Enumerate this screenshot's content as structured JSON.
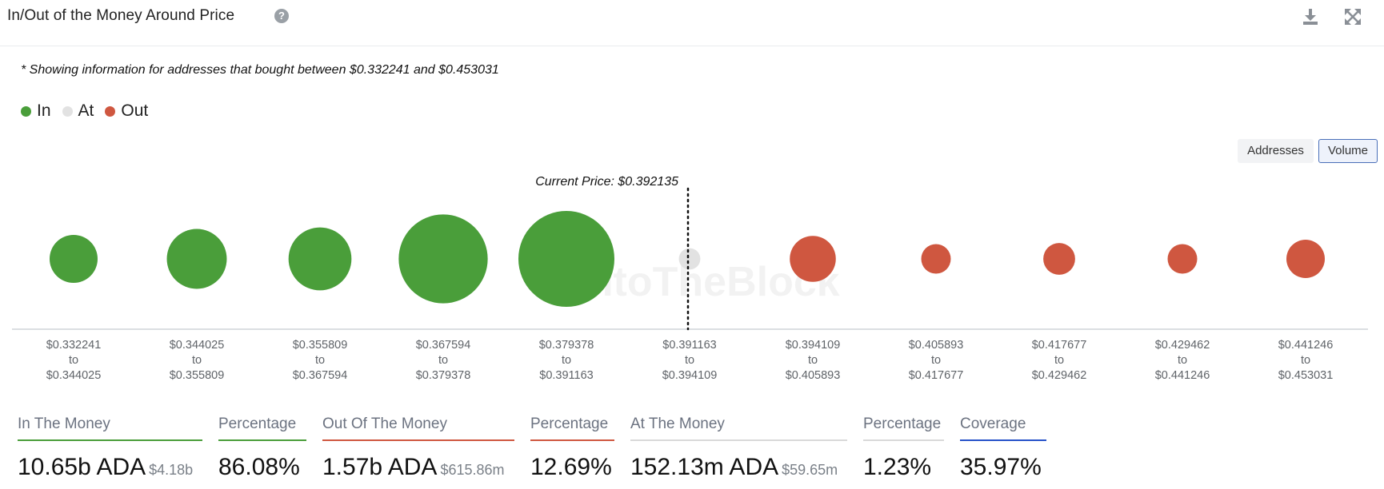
{
  "header": {
    "title": "In/Out of the Money Around Price",
    "help_glyph": "?"
  },
  "note": "* Showing information for addresses that bought between $0.332241 and $0.453031",
  "legend": [
    {
      "label": "In",
      "color": "#4a9e3a"
    },
    {
      "label": "At",
      "color": "#e2e2e2"
    },
    {
      "label": "Out",
      "color": "#cf5740"
    }
  ],
  "toggles": {
    "addresses": "Addresses",
    "volume": "Volume",
    "active": "Volume"
  },
  "chart_data": {
    "type": "bubble",
    "current_price_label": "Current Price: $0.392135",
    "current_price": 0.392135,
    "watermark": "IntoTheBlock",
    "connector": "to",
    "buckets": [
      {
        "low": "$0.332241",
        "high": "$0.344025",
        "status": "in",
        "relative_volume": 0.25
      },
      {
        "low": "$0.344025",
        "high": "$0.355809",
        "status": "in",
        "relative_volume": 0.39
      },
      {
        "low": "$0.355809",
        "high": "$0.367594",
        "status": "in",
        "relative_volume": 0.43
      },
      {
        "low": "$0.367594",
        "high": "$0.379378",
        "status": "in",
        "relative_volume": 0.86
      },
      {
        "low": "$0.379378",
        "high": "$0.391163",
        "status": "in",
        "relative_volume": 1.0
      },
      {
        "low": "$0.391163",
        "high": "$0.394109",
        "status": "at",
        "relative_volume": 0.05
      },
      {
        "low": "$0.394109",
        "high": "$0.405893",
        "status": "out",
        "relative_volume": 0.23
      },
      {
        "low": "$0.405893",
        "high": "$0.417677",
        "status": "out",
        "relative_volume": 0.095
      },
      {
        "low": "$0.417677",
        "high": "$0.429462",
        "status": "out",
        "relative_volume": 0.11
      },
      {
        "low": "$0.429462",
        "high": "$0.441246",
        "status": "out",
        "relative_volume": 0.095
      },
      {
        "low": "$0.441246",
        "high": "$0.453031",
        "status": "out",
        "relative_volume": 0.16
      }
    ],
    "colors": {
      "in": "#4a9e3a",
      "at": "#e2e2e2",
      "out": "#cf5740"
    }
  },
  "stats": [
    {
      "label": "In The Money",
      "value": "10.65b ADA",
      "sub": "$4.18b",
      "color": "#4a9e3a"
    },
    {
      "label": "Percentage",
      "value": "86.08%",
      "sub": "",
      "color": "#4a9e3a"
    },
    {
      "label": "Out Of The Money",
      "value": "1.57b ADA",
      "sub": "$615.86m",
      "color": "#cf5740"
    },
    {
      "label": "Percentage",
      "value": "12.69%",
      "sub": "",
      "color": "#cf5740"
    },
    {
      "label": "At The Money",
      "value": "152.13m ADA",
      "sub": "$59.65m",
      "color": "#d9d9d9"
    },
    {
      "label": "Percentage",
      "value": "1.23%",
      "sub": "",
      "color": "#d9d9d9"
    },
    {
      "label": "Coverage",
      "value": "35.97%",
      "sub": "",
      "color": "#2752c9"
    }
  ]
}
